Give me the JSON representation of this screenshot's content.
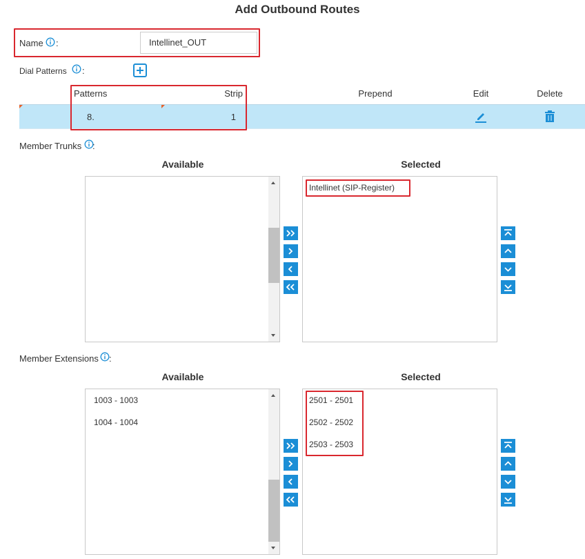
{
  "header": {
    "title": "Add Outbound Routes"
  },
  "name_field": {
    "label": "Name",
    "separator": ":",
    "value": "Intellinet_OUT"
  },
  "dial_patterns": {
    "label": "Dial Patterns",
    "separator": ":",
    "columns": [
      "Patterns",
      "Strip",
      "Prepend",
      "Edit",
      "Delete"
    ],
    "rows": [
      {
        "pattern": "8.",
        "strip": "1"
      }
    ]
  },
  "member_trunks": {
    "label": "Member Trunks",
    "separator": ":",
    "available_title": "Available",
    "selected_title": "Selected",
    "available": [],
    "selected": [
      "Intellinet (SIP-Register)"
    ]
  },
  "member_extensions": {
    "label": "Member Extensions",
    "separator": ":",
    "available_title": "Available",
    "selected_title": "Selected",
    "available": [
      "1003 - 1003",
      "1004 - 1004"
    ],
    "selected": [
      "2501 - 2501",
      "2502 - 2502",
      "2503 - 2503"
    ]
  }
}
